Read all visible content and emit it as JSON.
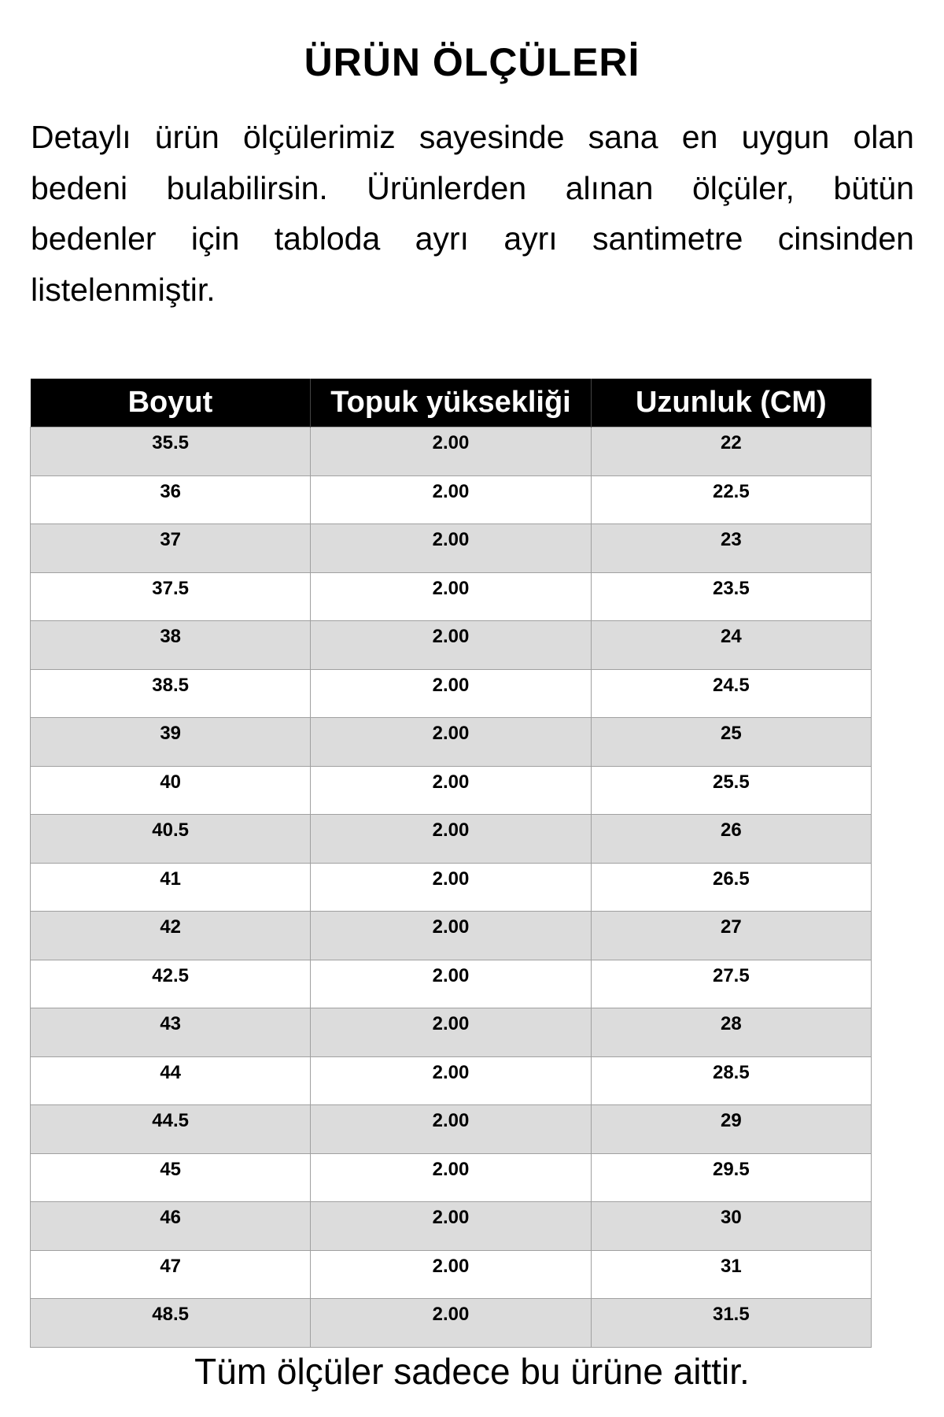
{
  "title": "ÜRÜN ÖLÇÜLERİ",
  "intro": "Detaylı ürün ölçülerimiz sayesinde sana en uygun olan bedeni bulabilirsin. Ürünlerden alınan ölçüler, bütün bedenler için tabloda ayrı ayrı santimetre cinsinden listelenmiştir.",
  "table": {
    "headers": [
      "Boyut",
      "Topuk yüksekliği",
      "Uzunluk (CM)"
    ],
    "rows": [
      [
        "35.5",
        "2.00",
        "22"
      ],
      [
        "36",
        "2.00",
        "22.5"
      ],
      [
        "37",
        "2.00",
        "23"
      ],
      [
        "37.5",
        "2.00",
        "23.5"
      ],
      [
        "38",
        "2.00",
        "24"
      ],
      [
        "38.5",
        "2.00",
        "24.5"
      ],
      [
        "39",
        "2.00",
        "25"
      ],
      [
        "40",
        "2.00",
        "25.5"
      ],
      [
        "40.5",
        "2.00",
        "26"
      ],
      [
        "41",
        "2.00",
        "26.5"
      ],
      [
        "42",
        "2.00",
        "27"
      ],
      [
        "42.5",
        "2.00",
        "27.5"
      ],
      [
        "43",
        "2.00",
        "28"
      ],
      [
        "44",
        "2.00",
        "28.5"
      ],
      [
        "44.5",
        "2.00",
        "29"
      ],
      [
        "45",
        "2.00",
        "29.5"
      ],
      [
        "46",
        "2.00",
        "30"
      ],
      [
        "47",
        "2.00",
        "31"
      ],
      [
        "48.5",
        "2.00",
        "31.5"
      ]
    ]
  },
  "footer": "Tüm ölçüler sadece bu ürüne aittir.",
  "colors": {
    "header_bg": "#000000",
    "stripe": "#dcdcdc"
  }
}
